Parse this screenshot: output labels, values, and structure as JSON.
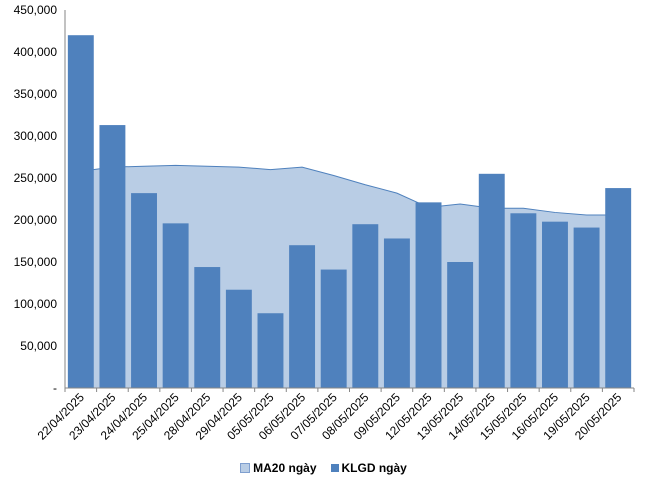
{
  "chart_data": {
    "type": "bar",
    "categories": [
      "22/04/2025",
      "23/04/2025",
      "24/04/2025",
      "25/04/2025",
      "28/04/2025",
      "29/04/2025",
      "05/05/2025",
      "06/05/2025",
      "07/05/2025",
      "08/05/2025",
      "09/05/2025",
      "12/05/2025",
      "13/05/2025",
      "14/05/2025",
      "15/05/2025",
      "16/05/2025",
      "19/05/2025",
      "20/05/2025"
    ],
    "series": [
      {
        "name": "MA20 ngày",
        "type": "area",
        "color": "#b9cde5",
        "values": [
          258000,
          263000,
          264000,
          265000,
          264000,
          263000,
          260000,
          263000,
          253000,
          242000,
          232000,
          215000,
          219000,
          214000,
          214000,
          209000,
          206000,
          206000
        ]
      },
      {
        "name": "KLGD ngày",
        "type": "bar",
        "color": "#4f81bd",
        "values": [
          420000,
          313000,
          232000,
          196000,
          144000,
          117000,
          89000,
          170000,
          141000,
          195000,
          178000,
          221000,
          150000,
          255000,
          208000,
          198000,
          191000,
          238000
        ]
      }
    ],
    "ylim": [
      0,
      450000
    ],
    "yticks": [
      "-",
      "50,000",
      "100,000",
      "150,000",
      "200,000",
      "250,000",
      "300,000",
      "350,000",
      "400,000",
      "450,000"
    ],
    "grid": false,
    "legend_position": "bottom"
  }
}
